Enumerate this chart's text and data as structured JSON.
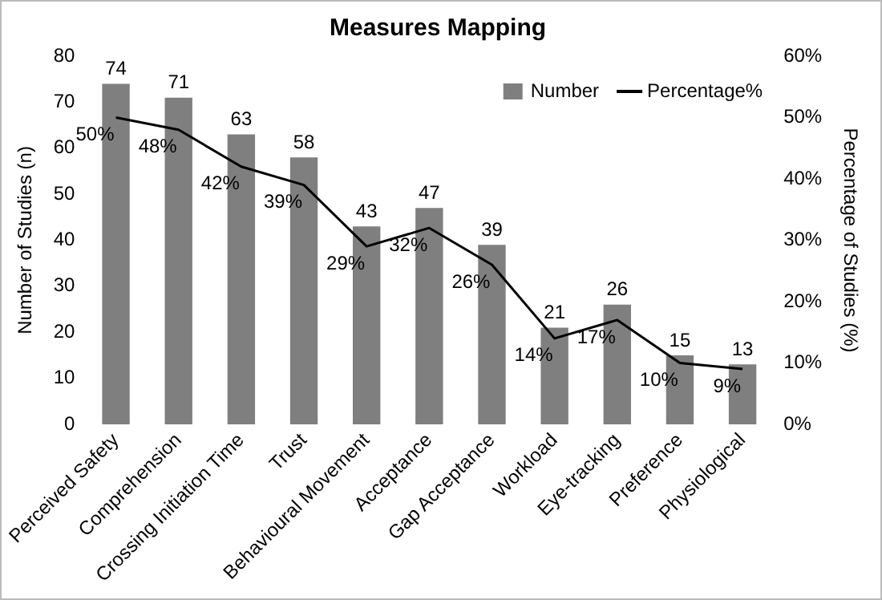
{
  "chart_data": {
    "type": "bar",
    "title": "Measures Mapping",
    "ylabel": "Number of Studies (n)",
    "y2label": "Percentage of Studies (%)",
    "categories": [
      "Perceived Safety",
      "Comprehension",
      "Crossing Initiation Time",
      "Trust",
      "Behavioural Movement",
      "Acceptance",
      "Gap Acceptance",
      "Workload",
      "Eye-tracking",
      "Preference",
      "Physiological"
    ],
    "series": [
      {
        "name": "Number",
        "color": "#7f7f7f",
        "values": [
          74,
          71,
          63,
          58,
          43,
          47,
          39,
          21,
          26,
          15,
          13
        ]
      },
      {
        "name": "Percentage%",
        "type": "line",
        "axis": "y2",
        "color": "#000000",
        "values": [
          50,
          48,
          42,
          39,
          29,
          32,
          26,
          14,
          17,
          10,
          9
        ],
        "value_labels": [
          "50%",
          "48%",
          "42%",
          "39%",
          "29%",
          "32%",
          "26%",
          "14%",
          "17%",
          "10%",
          "9%"
        ]
      }
    ],
    "data_labels": true,
    "ylim": [
      0,
      80
    ],
    "yticks": [
      0,
      10,
      20,
      30,
      40,
      50,
      60,
      70,
      80
    ],
    "y2lim": [
      0,
      60
    ],
    "y2ticks": [
      {
        "value": 0,
        "label": "0%"
      },
      {
        "value": 10,
        "label": "10%"
      },
      {
        "value": 20,
        "label": "20%"
      },
      {
        "value": 30,
        "label": "30%"
      },
      {
        "value": 40,
        "label": "40%"
      },
      {
        "value": 50,
        "label": "50%"
      },
      {
        "value": 60,
        "label": "60%"
      }
    ],
    "grid": false,
    "legend": "top right",
    "marker": "none"
  }
}
